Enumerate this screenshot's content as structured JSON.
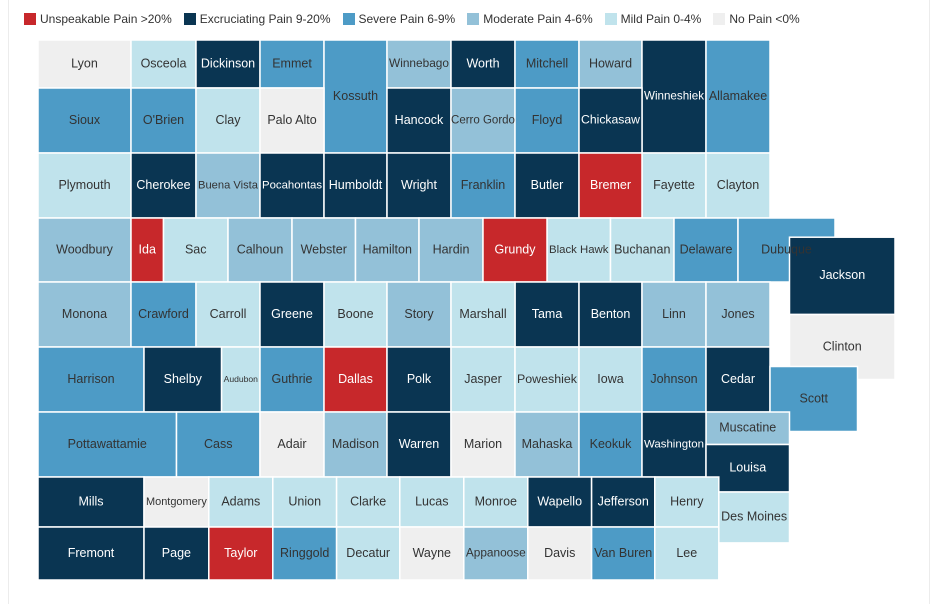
{
  "legend": [
    {
      "key": "unspeakable",
      "label": "Unspeakable Pain >20%",
      "color": "#c7282b"
    },
    {
      "key": "excruciating",
      "label": "Excruciating Pain 9-20%",
      "color": "#0a3552"
    },
    {
      "key": "severe",
      "label": "Severe Pain 6-9%",
      "color": "#4d9bc6"
    },
    {
      "key": "moderate",
      "label": "Moderate Pain 4-6%",
      "color": "#93c1d8"
    },
    {
      "key": "mild",
      "label": "Mild Pain 0-4%",
      "color": "#c0e3ec"
    },
    {
      "key": "none",
      "label": "No Pain <0%",
      "color": "#efefef"
    }
  ],
  "counties": [
    {
      "name": "Lyon",
      "cat": "none"
    },
    {
      "name": "Osceola",
      "cat": "mild"
    },
    {
      "name": "Dickinson",
      "cat": "excruciating"
    },
    {
      "name": "Emmet",
      "cat": "severe"
    },
    {
      "name": "Kossuth",
      "cat": "severe"
    },
    {
      "name": "Winnebago",
      "cat": "moderate"
    },
    {
      "name": "Worth",
      "cat": "excruciating"
    },
    {
      "name": "Mitchell",
      "cat": "severe"
    },
    {
      "name": "Howard",
      "cat": "moderate"
    },
    {
      "name": "Winneshiek",
      "cat": "excruciating"
    },
    {
      "name": "Allamakee",
      "cat": "severe"
    },
    {
      "name": "Sioux",
      "cat": "severe"
    },
    {
      "name": "O'Brien",
      "cat": "severe"
    },
    {
      "name": "Clay",
      "cat": "mild"
    },
    {
      "name": "Palo Alto",
      "cat": "none"
    },
    {
      "name": "Hancock",
      "cat": "excruciating"
    },
    {
      "name": "Cerro Gordo",
      "cat": "moderate"
    },
    {
      "name": "Floyd",
      "cat": "severe"
    },
    {
      "name": "Chickasaw",
      "cat": "excruciating"
    },
    {
      "name": "Fayette",
      "cat": "mild"
    },
    {
      "name": "Clayton",
      "cat": "mild"
    },
    {
      "name": "Plymouth",
      "cat": "mild"
    },
    {
      "name": "Cherokee",
      "cat": "excruciating"
    },
    {
      "name": "Buena Vista",
      "cat": "moderate"
    },
    {
      "name": "Pocahontas",
      "cat": "excruciating"
    },
    {
      "name": "Humboldt",
      "cat": "excruciating"
    },
    {
      "name": "Wright",
      "cat": "excruciating"
    },
    {
      "name": "Franklin",
      "cat": "severe"
    },
    {
      "name": "Butler",
      "cat": "excruciating"
    },
    {
      "name": "Bremer",
      "cat": "unspeakable"
    },
    {
      "name": "Black Hawk",
      "cat": "mild"
    },
    {
      "name": "Buchanan",
      "cat": "mild"
    },
    {
      "name": "Delaware",
      "cat": "severe"
    },
    {
      "name": "Dubuque",
      "cat": "severe"
    },
    {
      "name": "Woodbury",
      "cat": "moderate"
    },
    {
      "name": "Ida",
      "cat": "unspeakable"
    },
    {
      "name": "Sac",
      "cat": "mild"
    },
    {
      "name": "Calhoun",
      "cat": "moderate"
    },
    {
      "name": "Webster",
      "cat": "moderate"
    },
    {
      "name": "Hamilton",
      "cat": "moderate"
    },
    {
      "name": "Hardin",
      "cat": "moderate"
    },
    {
      "name": "Grundy",
      "cat": "unspeakable"
    },
    {
      "name": "Tama",
      "cat": "excruciating"
    },
    {
      "name": "Benton",
      "cat": "excruciating"
    },
    {
      "name": "Linn",
      "cat": "moderate"
    },
    {
      "name": "Jones",
      "cat": "moderate"
    },
    {
      "name": "Jackson",
      "cat": "excruciating"
    },
    {
      "name": "Monona",
      "cat": "moderate"
    },
    {
      "name": "Crawford",
      "cat": "severe"
    },
    {
      "name": "Carroll",
      "cat": "mild"
    },
    {
      "name": "Greene",
      "cat": "excruciating"
    },
    {
      "name": "Boone",
      "cat": "mild"
    },
    {
      "name": "Story",
      "cat": "moderate"
    },
    {
      "name": "Marshall",
      "cat": "mild"
    },
    {
      "name": "Clinton",
      "cat": "none"
    },
    {
      "name": "Harrison",
      "cat": "severe"
    },
    {
      "name": "Shelby",
      "cat": "excruciating"
    },
    {
      "name": "Audubon",
      "cat": "mild"
    },
    {
      "name": "Guthrie",
      "cat": "severe"
    },
    {
      "name": "Dallas",
      "cat": "unspeakable"
    },
    {
      "name": "Polk",
      "cat": "excruciating"
    },
    {
      "name": "Jasper",
      "cat": "mild"
    },
    {
      "name": "Poweshiek",
      "cat": "mild"
    },
    {
      "name": "Iowa",
      "cat": "mild"
    },
    {
      "name": "Johnson",
      "cat": "severe"
    },
    {
      "name": "Cedar",
      "cat": "excruciating"
    },
    {
      "name": "Scott",
      "cat": "severe"
    },
    {
      "name": "Muscatine",
      "cat": "moderate"
    },
    {
      "name": "Pottawattamie",
      "cat": "severe"
    },
    {
      "name": "Cass",
      "cat": "severe"
    },
    {
      "name": "Adair",
      "cat": "none"
    },
    {
      "name": "Madison",
      "cat": "moderate"
    },
    {
      "name": "Warren",
      "cat": "excruciating"
    },
    {
      "name": "Marion",
      "cat": "none"
    },
    {
      "name": "Mahaska",
      "cat": "moderate"
    },
    {
      "name": "Keokuk",
      "cat": "severe"
    },
    {
      "name": "Washington",
      "cat": "excruciating"
    },
    {
      "name": "Louisa",
      "cat": "excruciating"
    },
    {
      "name": "Mills",
      "cat": "excruciating"
    },
    {
      "name": "Montgomery",
      "cat": "none"
    },
    {
      "name": "Adams",
      "cat": "mild"
    },
    {
      "name": "Union",
      "cat": "mild"
    },
    {
      "name": "Clarke",
      "cat": "mild"
    },
    {
      "name": "Lucas",
      "cat": "mild"
    },
    {
      "name": "Monroe",
      "cat": "mild"
    },
    {
      "name": "Wapello",
      "cat": "excruciating"
    },
    {
      "name": "Jefferson",
      "cat": "excruciating"
    },
    {
      "name": "Henry",
      "cat": "mild"
    },
    {
      "name": "Des Moines",
      "cat": "mild"
    },
    {
      "name": "Fremont",
      "cat": "excruciating"
    },
    {
      "name": "Page",
      "cat": "excruciating"
    },
    {
      "name": "Taylor",
      "cat": "unspeakable"
    },
    {
      "name": "Ringgold",
      "cat": "severe"
    },
    {
      "name": "Decatur",
      "cat": "mild"
    },
    {
      "name": "Wayne",
      "cat": "none"
    },
    {
      "name": "Appanoose",
      "cat": "moderate"
    },
    {
      "name": "Davis",
      "cat": "none"
    },
    {
      "name": "Van Buren",
      "cat": "severe"
    },
    {
      "name": "Lee",
      "cat": "mild"
    }
  ]
}
